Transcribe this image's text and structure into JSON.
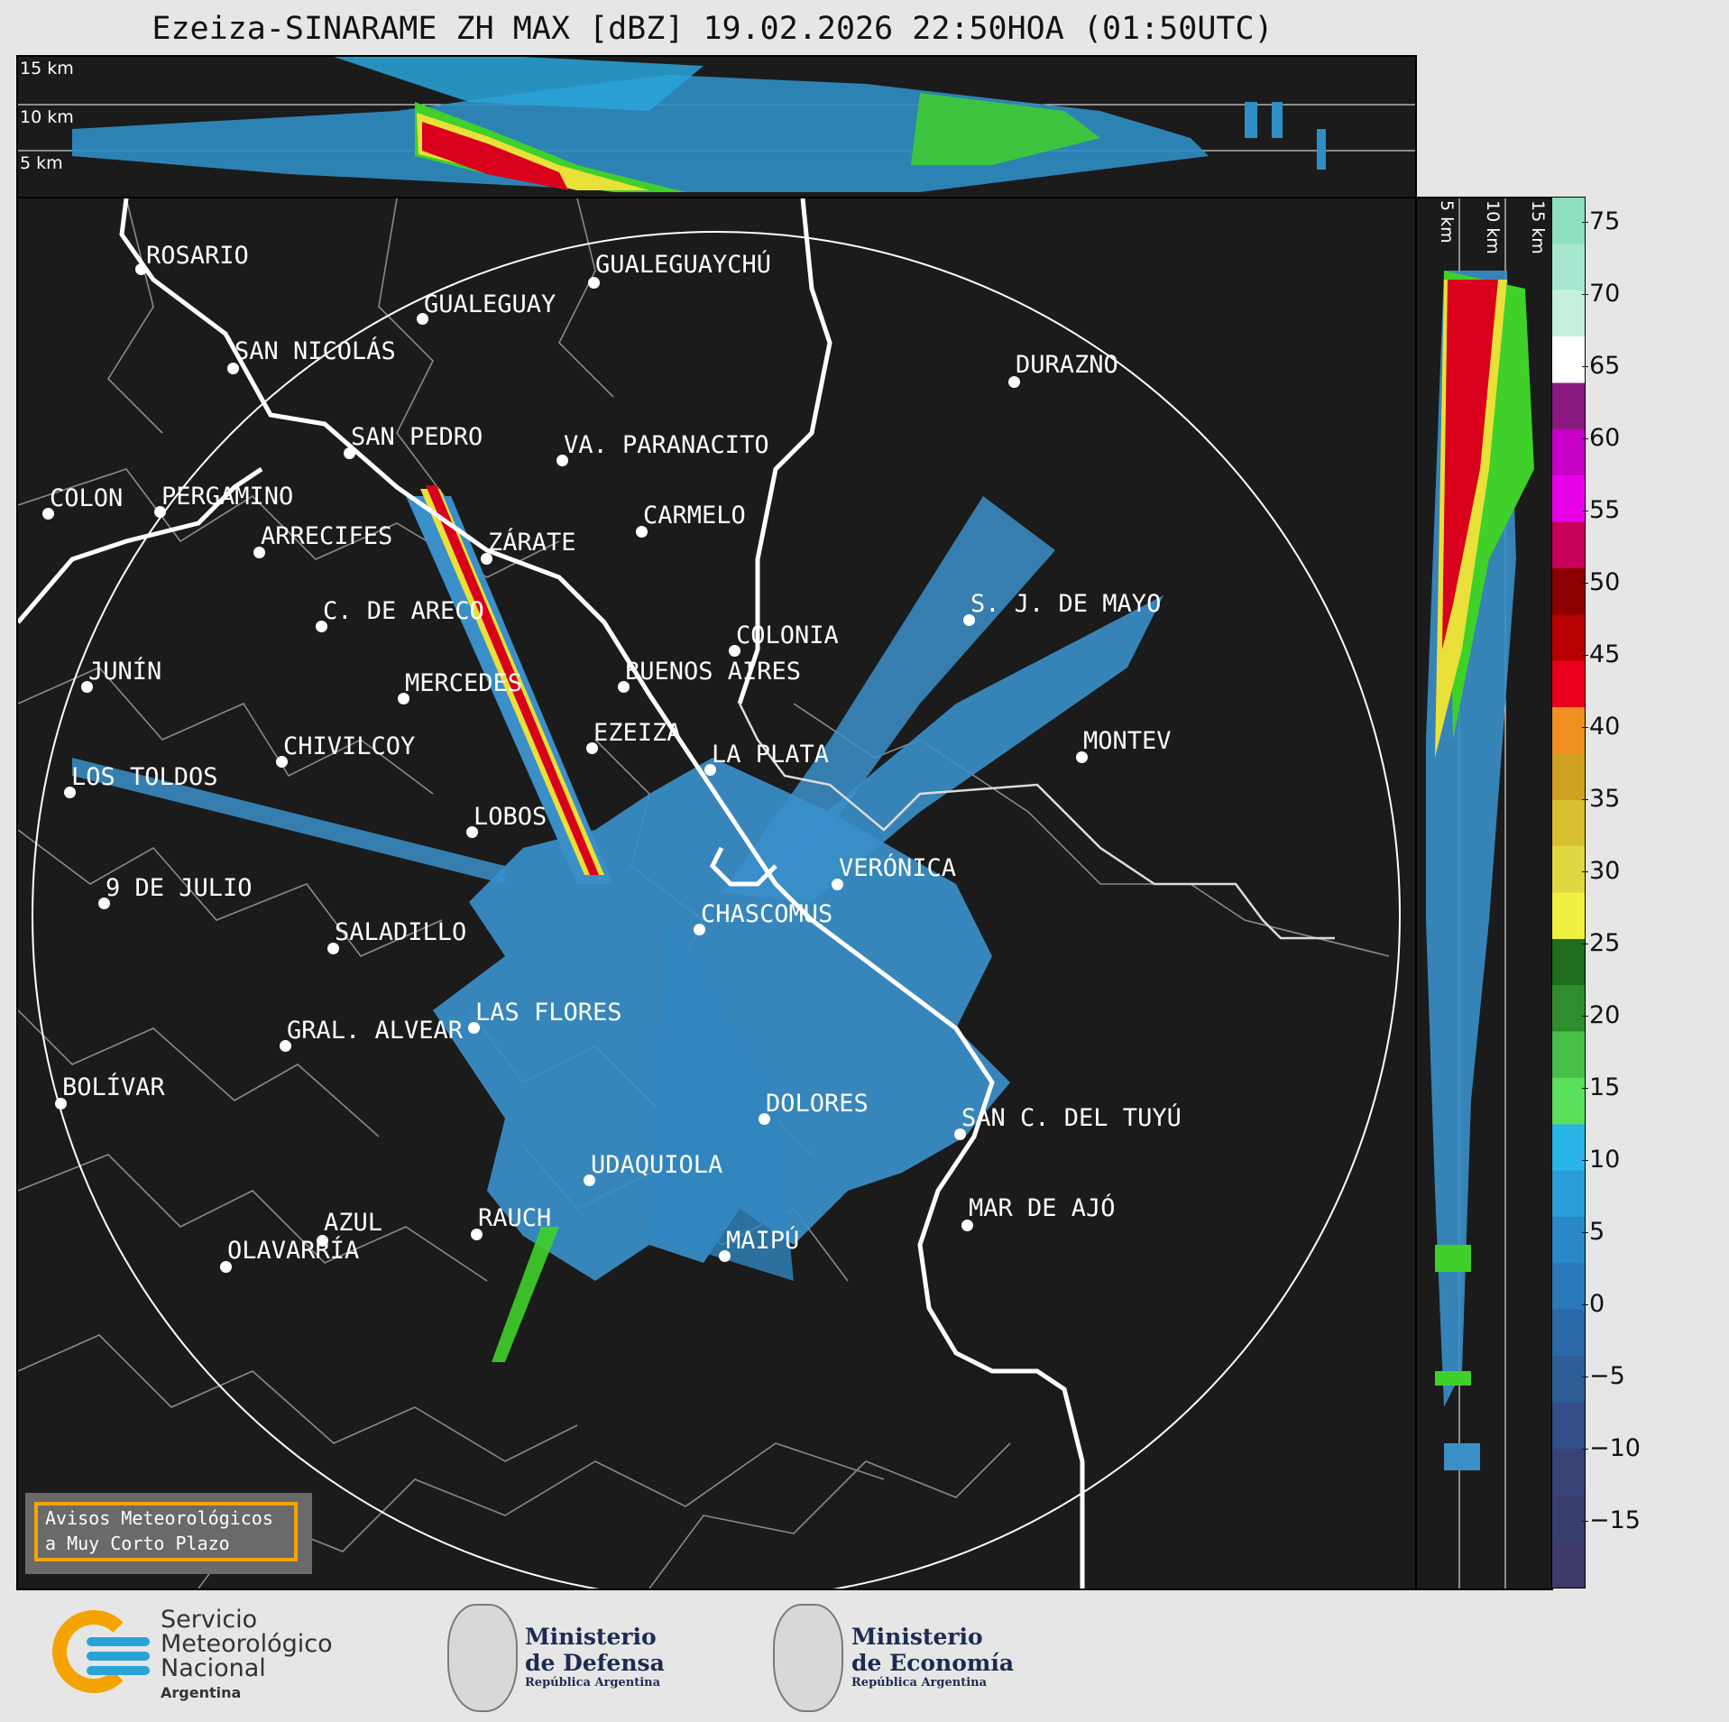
{
  "title": "Ezeiza-SINARAME ZH MAX [dBZ] 19.02.2026 22:50HOA (01:50UTC)",
  "top_panel": {
    "heights": [
      "15 km",
      "10 km",
      "5 km"
    ]
  },
  "side_panel": {
    "heights": [
      "5 km",
      "10 km",
      "15 km"
    ]
  },
  "colorbar": {
    "unit": "dBZ",
    "ticks": [
      "75",
      "70",
      "65",
      "60",
      "55",
      "50",
      "45",
      "40",
      "35",
      "30",
      "25",
      "20",
      "15",
      "10",
      "5",
      "0",
      "−5",
      "−10",
      "−15"
    ]
  },
  "cities": [
    {
      "name": "ROSARIO"
    },
    {
      "name": "GUALEGUAYCHÚ"
    },
    {
      "name": "GUALEGUAY"
    },
    {
      "name": "SAN NICOLÁS"
    },
    {
      "name": "DURAZNO"
    },
    {
      "name": "SAN PEDRO"
    },
    {
      "name": "VA. PARANACITO"
    },
    {
      "name": "COLON"
    },
    {
      "name": "PERGAMINO"
    },
    {
      "name": "CARMELO"
    },
    {
      "name": "ARRECIFES"
    },
    {
      "name": "ZÁRATE"
    },
    {
      "name": "S. J. DE MAYO"
    },
    {
      "name": "C. DE ARECO"
    },
    {
      "name": "COLONIA"
    },
    {
      "name": "JUNÍN"
    },
    {
      "name": "BUENOS AIRES"
    },
    {
      "name": "MERCEDES"
    },
    {
      "name": "EZEIZA"
    },
    {
      "name": "MONTEV"
    },
    {
      "name": "CHIVILCOY"
    },
    {
      "name": "LA PLATA"
    },
    {
      "name": "LOS TOLDOS"
    },
    {
      "name": "LOBOS"
    },
    {
      "name": "VERÓNICA"
    },
    {
      "name": "9 DE JULIO"
    },
    {
      "name": "CHASCOMUS"
    },
    {
      "name": "SALADILLO"
    },
    {
      "name": "LAS FLORES"
    },
    {
      "name": "GRAL. ALVEAR"
    },
    {
      "name": "BOLÍVAR"
    },
    {
      "name": "DOLORES"
    },
    {
      "name": "SAN C. DEL TUYÚ"
    },
    {
      "name": "UDAQUIOLA"
    },
    {
      "name": "MAR DE AJÓ"
    },
    {
      "name": "RAUCH"
    },
    {
      "name": "AZUL"
    },
    {
      "name": "MAIPÚ"
    },
    {
      "name": "OLAVARRÍA"
    }
  ],
  "avisos": {
    "line1": "Avisos Meteorológicos",
    "line2": "a Muy Corto Plazo"
  },
  "footer": {
    "smn": {
      "line1": "Servicio",
      "line2": "Meteorológico",
      "line3": "Nacional",
      "line4": "Argentina"
    },
    "defensa": {
      "line1": "Ministerio",
      "line2": "de Defensa",
      "line3": "República Argentina"
    },
    "economia": {
      "line1": "Ministerio",
      "line2": "de Economía",
      "line3": "República Argentina"
    }
  },
  "colors": {
    "background": "#1b1b1b",
    "coast": "#ffffff",
    "boundaries": "#8a8a8a",
    "echo": "#3a8fc9",
    "accent": "#f5a300"
  }
}
